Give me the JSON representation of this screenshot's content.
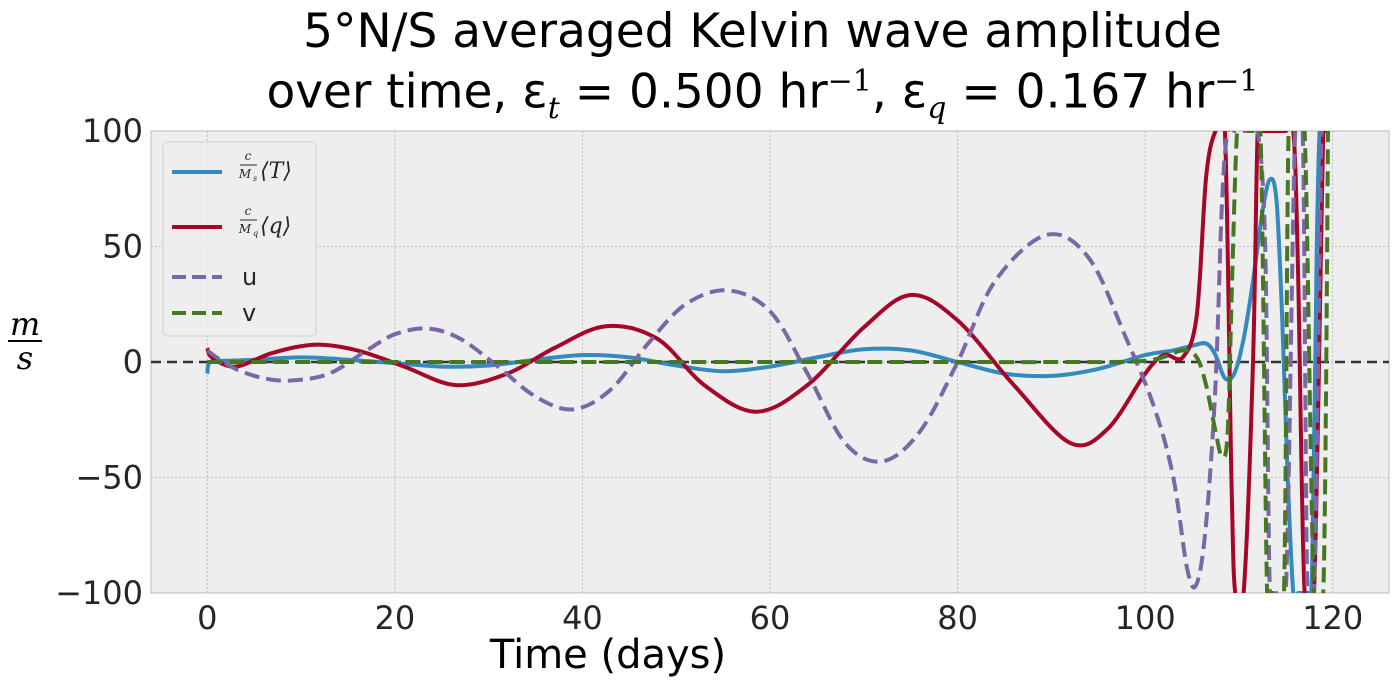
{
  "title": {
    "line1": "5°N/S averaged Kelvin wave amplitude",
    "line2_prefix": "over time, ε",
    "line2_sub_t": "t",
    "line2_mid": " = 0.500 hr",
    "line2_sup_1": "−1",
    "line2_comma": ",  ε",
    "line2_sub_q": "q",
    "line2_mid2": " = 0.167 hr",
    "line2_sup_2": "−1"
  },
  "ylabel": {
    "numerator": "m",
    "denominator": "s"
  },
  "chart_data": {
    "type": "line",
    "title": "5°N/S averaged Kelvin wave amplitude over time, ε_t = 0.500 hr^-1, ε_q = 0.167 hr^-1",
    "xlabel": "Time (days)",
    "ylabel": "m/s",
    "xlim": [
      -6,
      126
    ],
    "ylim": [
      -100,
      100
    ],
    "xticks": [
      0,
      20,
      40,
      60,
      80,
      100,
      120
    ],
    "yticks": [
      -100,
      -50,
      0,
      50,
      100
    ],
    "ytick_labels": [
      "−100",
      "−50",
      "0",
      "50",
      "100"
    ],
    "grid": true,
    "legend_position": "upper-left",
    "zero_line": {
      "y": 0,
      "style": "dashed",
      "color": "#333333"
    },
    "series": [
      {
        "name": "c/M_s ⟨T⟩",
        "legend_parts": {
          "num": "c",
          "den": "M",
          "den_sub": "s",
          "bracket": "⟨T⟩"
        },
        "color": "#348ABD",
        "dash": "solid",
        "x": [
          0,
          0.3,
          2,
          5,
          10,
          15,
          20,
          25,
          30,
          35,
          40,
          45,
          50,
          55,
          60,
          65,
          70,
          75,
          80,
          85,
          90,
          95,
          100,
          103,
          105,
          106.5,
          107.5,
          108.5,
          109.5,
          110.5,
          111.5,
          112.5,
          113.3,
          114,
          114.6,
          115.2,
          115.8,
          116.3,
          116.8,
          117.3,
          117.8,
          118.3,
          118.6,
          118.9
        ],
        "y": [
          -5,
          0,
          0.5,
          1,
          2,
          1,
          -0.5,
          -2,
          -1.5,
          1,
          3,
          2,
          -1.5,
          -4,
          -2,
          2,
          5.5,
          5,
          0,
          -5,
          -6,
          -3,
          3,
          5,
          7,
          8,
          3,
          -7,
          -5,
          10,
          35,
          65,
          79,
          70,
          20,
          -50,
          -100,
          -100,
          -100,
          -100,
          -90,
          50,
          100,
          100
        ]
      },
      {
        "name": "c/M_q ⟨q⟩",
        "legend_parts": {
          "num": "c",
          "den": "M",
          "den_sub": "q",
          "bracket": "⟨q⟩"
        },
        "color": "#A60628",
        "dash": "solid",
        "x": [
          0,
          0.5,
          3,
          7,
          11.5,
          16,
          21,
          26.5,
          32,
          37,
          42.5,
          48,
          53,
          58.5,
          64,
          70,
          75,
          80,
          86,
          92,
          96,
          100,
          102,
          104,
          105.5,
          106.5,
          107.5,
          108.5,
          109.2,
          109.6,
          110.5,
          111.5,
          112,
          112.5,
          113.2,
          114,
          115,
          115.8,
          116.3,
          117,
          118,
          119,
          119.3
        ],
        "y": [
          6,
          2,
          -2,
          4,
          7.5,
          5,
          -2,
          -10,
          -5,
          6,
          15.5,
          10,
          -10,
          -21.5,
          -10,
          15,
          29,
          18,
          -10,
          -35,
          -29,
          -5,
          3,
          2,
          20,
          80,
          100,
          100,
          -50,
          -100,
          -100,
          0,
          100,
          100,
          100,
          100,
          100,
          100,
          40,
          -100,
          -100,
          100,
          100
        ]
      },
      {
        "name": "u",
        "color": "#7A68A6",
        "dash": "dashed",
        "x": [
          0,
          1,
          3,
          6,
          9,
          13,
          17,
          20,
          23.5,
          27,
          31,
          35,
          39,
          43,
          47,
          51,
          55.5,
          60,
          64,
          68,
          72,
          76,
          80,
          84,
          89.5,
          94,
          98,
          101,
          103,
          104.5,
          105.5,
          106.5,
          107.5,
          108.2,
          108.8,
          109.5,
          110,
          111,
          112,
          112.8,
          113.3,
          114,
          115,
          116,
          116.8,
          117.3,
          118,
          118.8
        ],
        "y": [
          5,
          2,
          -3,
          -7,
          -8,
          -5,
          5,
          12,
          14.5,
          10,
          -2,
          -15,
          -20.5,
          -12,
          8,
          25,
          31,
          22,
          -5,
          -35,
          -43,
          -30,
          0,
          35,
          55,
          45,
          10,
          -20,
          -50,
          -90,
          -96,
          -70,
          -10,
          70,
          100,
          100,
          100,
          100,
          100,
          50,
          -100,
          -100,
          -100,
          100,
          100,
          -100,
          -100,
          100
        ]
      },
      {
        "name": "v",
        "color": "#467821",
        "dash": "dashed",
        "x": [
          0,
          10,
          20,
          30,
          40,
          50,
          60,
          70,
          80,
          90,
          100,
          104,
          105.5,
          106.5,
          107.5,
          108.2,
          108.8,
          109.3,
          109.8,
          110.3,
          110.8,
          111.5,
          112.3,
          113,
          113.5,
          114,
          114.8,
          115.3,
          116,
          117,
          118,
          119,
          119.5
        ],
        "y": [
          0,
          0,
          0,
          0,
          0,
          0,
          0,
          0,
          0,
          0,
          0.5,
          5,
          2,
          -10,
          -30,
          -41,
          -30,
          40,
          100,
          100,
          100,
          100,
          100,
          -100,
          -100,
          -100,
          -100,
          100,
          100,
          100,
          -100,
          -100,
          100
        ]
      }
    ]
  }
}
